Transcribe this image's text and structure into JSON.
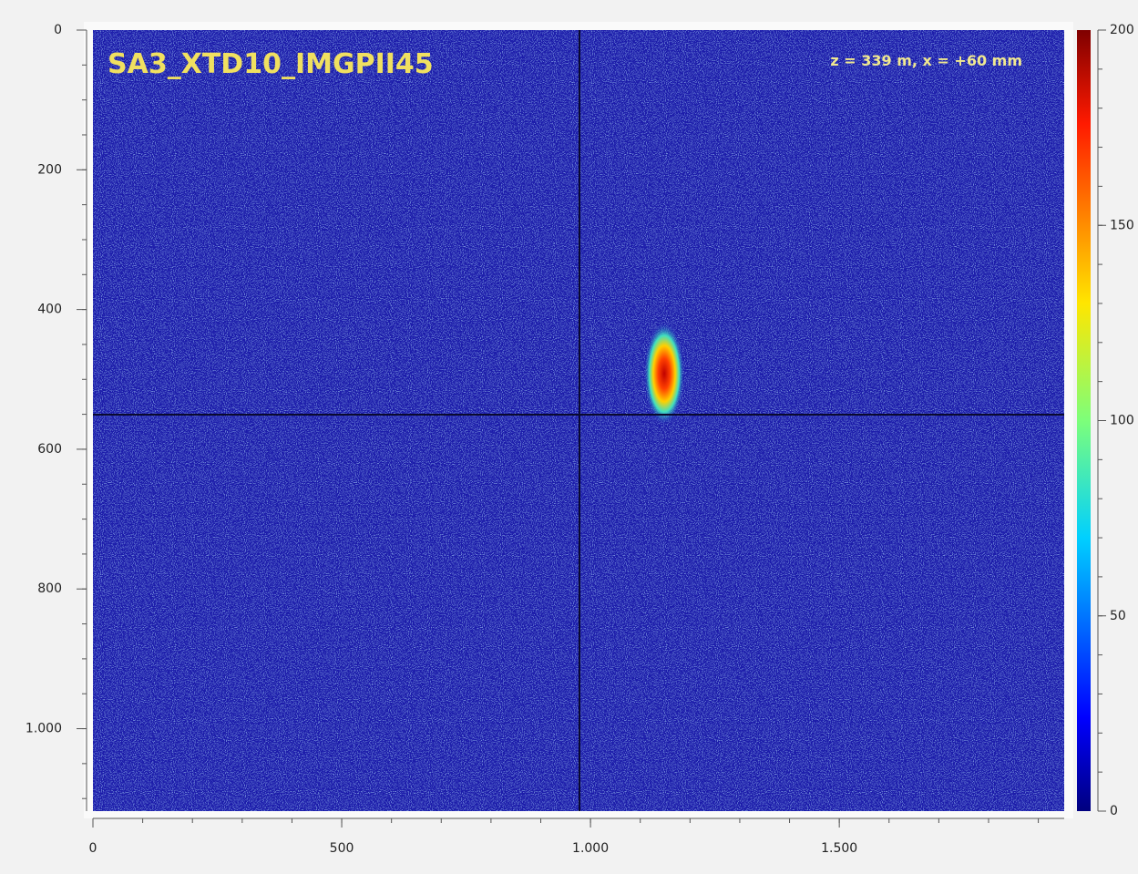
{
  "chart_data": {
    "type": "image",
    "title": "SA3_XTD10_IMGPII45",
    "annotation": "z = 339 m, x = +60 mm",
    "xlim": [
      0,
      1952
    ],
    "xticks": [
      0,
      500,
      {
        "value": 1000,
        "label": "1.000"
      },
      {
        "value": 1500,
        "label": "1.500"
      }
    ],
    "ylim": [
      0,
      1118
    ],
    "yticks": [
      0,
      200,
      400,
      600,
      800,
      {
        "value": 1000,
        "label": "1.000"
      }
    ],
    "colorbar": {
      "clim": [
        0,
        200
      ],
      "ticks": [
        0,
        50,
        100,
        150,
        200
      ]
    }
  }
}
